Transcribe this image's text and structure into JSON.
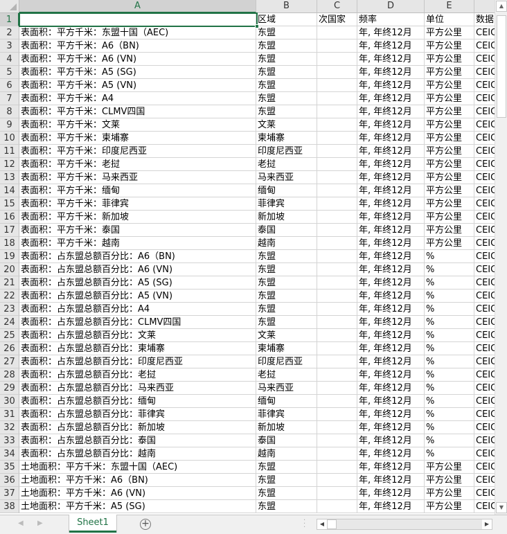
{
  "columns": [
    "A",
    "B",
    "C",
    "D",
    "E",
    ""
  ],
  "rows": [
    [
      "",
      "区域",
      "次国家",
      "频率",
      "单位",
      "数据"
    ],
    [
      "表面积：平方千米：东盟十国（AEC)",
      "东盟",
      "",
      "年, 年终12月",
      "平方公里",
      "CEIC"
    ],
    [
      "表面积：平方千米：A6（BN)",
      "东盟",
      "",
      "年, 年终12月",
      "平方公里",
      "CEIC"
    ],
    [
      "表面积：平方千米：A6 (VN)",
      "东盟",
      "",
      "年, 年终12月",
      "平方公里",
      "CEIC"
    ],
    [
      "表面积：平方千米：A5 (SG)",
      "东盟",
      "",
      "年, 年终12月",
      "平方公里",
      "CEIC"
    ],
    [
      "表面积：平方千米：A5 (VN)",
      "东盟",
      "",
      "年, 年终12月",
      "平方公里",
      "CEIC"
    ],
    [
      "表面积：平方千米：A4",
      "东盟",
      "",
      "年, 年终12月",
      "平方公里",
      "CEIC"
    ],
    [
      "表面积：平方千米：CLMV四国",
      "东盟",
      "",
      "年, 年终12月",
      "平方公里",
      "CEIC"
    ],
    [
      "表面积：平方千米：文莱",
      "文莱",
      "",
      "年, 年终12月",
      "平方公里",
      "CEIC"
    ],
    [
      "表面积：平方千米：柬埔寨",
      "柬埔寨",
      "",
      "年, 年终12月",
      "平方公里",
      "CEIC"
    ],
    [
      "表面积：平方千米：印度尼西亚",
      "印度尼西亚",
      "",
      "年, 年终12月",
      "平方公里",
      "CEIC"
    ],
    [
      "表面积：平方千米：老挝",
      "老挝",
      "",
      "年, 年终12月",
      "平方公里",
      "CEIC"
    ],
    [
      "表面积：平方千米：马来西亚",
      "马来西亚",
      "",
      "年, 年终12月",
      "平方公里",
      "CEIC"
    ],
    [
      "表面积：平方千米：缅甸",
      "缅甸",
      "",
      "年, 年终12月",
      "平方公里",
      "CEIC"
    ],
    [
      "表面积：平方千米：菲律宾",
      "菲律宾",
      "",
      "年, 年终12月",
      "平方公里",
      "CEIC"
    ],
    [
      "表面积：平方千米：新加坡",
      "新加坡",
      "",
      "年, 年终12月",
      "平方公里",
      "CEIC"
    ],
    [
      "表面积：平方千米：泰国",
      "泰国",
      "",
      "年, 年终12月",
      "平方公里",
      "CEIC"
    ],
    [
      "表面积：平方千米：越南",
      "越南",
      "",
      "年, 年终12月",
      "平方公里",
      "CEIC"
    ],
    [
      "表面积：占东盟总额百分比：A6（BN)",
      "东盟",
      "",
      "年, 年终12月",
      "%",
      "CEIC"
    ],
    [
      "表面积：占东盟总额百分比：A6 (VN)",
      "东盟",
      "",
      "年, 年终12月",
      "%",
      "CEIC"
    ],
    [
      "表面积：占东盟总额百分比：A5 (SG)",
      "东盟",
      "",
      "年, 年终12月",
      "%",
      "CEIC"
    ],
    [
      "表面积：占东盟总额百分比：A5 (VN)",
      "东盟",
      "",
      "年, 年终12月",
      "%",
      "CEIC"
    ],
    [
      "表面积：占东盟总额百分比：A4",
      "东盟",
      "",
      "年, 年终12月",
      "%",
      "CEIC"
    ],
    [
      "表面积：占东盟总额百分比：CLMV四国",
      "东盟",
      "",
      "年, 年终12月",
      "%",
      "CEIC"
    ],
    [
      "表面积：占东盟总额百分比：文莱",
      "文莱",
      "",
      "年, 年终12月",
      "%",
      "CEIC"
    ],
    [
      "表面积：占东盟总额百分比：柬埔寨",
      "柬埔寨",
      "",
      "年, 年终12月",
      "%",
      "CEIC"
    ],
    [
      "表面积：占东盟总额百分比：印度尼西亚",
      "印度尼西亚",
      "",
      "年, 年终12月",
      "%",
      "CEIC"
    ],
    [
      "表面积：占东盟总额百分比：老挝",
      "老挝",
      "",
      "年, 年终12月",
      "%",
      "CEIC"
    ],
    [
      "表面积：占东盟总额百分比：马来西亚",
      "马来西亚",
      "",
      "年, 年终12月",
      "%",
      "CEIC"
    ],
    [
      "表面积：占东盟总额百分比：缅甸",
      "缅甸",
      "",
      "年, 年终12月",
      "%",
      "CEIC"
    ],
    [
      "表面积：占东盟总额百分比：菲律宾",
      "菲律宾",
      "",
      "年, 年终12月",
      "%",
      "CEIC"
    ],
    [
      "表面积：占东盟总额百分比：新加坡",
      "新加坡",
      "",
      "年, 年终12月",
      "%",
      "CEIC"
    ],
    [
      "表面积：占东盟总额百分比：泰国",
      "泰国",
      "",
      "年, 年终12月",
      "%",
      "CEIC"
    ],
    [
      "表面积：占东盟总额百分比：越南",
      "越南",
      "",
      "年, 年终12月",
      "%",
      "CEIC"
    ],
    [
      "土地面积：平方千米：东盟十国（AEC)",
      "东盟",
      "",
      "年, 年终12月",
      "平方公里",
      "CEIC"
    ],
    [
      "土地面积：平方千米：A6（BN)",
      "东盟",
      "",
      "年, 年终12月",
      "平方公里",
      "CEIC"
    ],
    [
      "土地面积：平方千米：A6 (VN)",
      "东盟",
      "",
      "年, 年终12月",
      "平方公里",
      "CEIC"
    ],
    [
      "土地面积：平方千米：A5 (SG)",
      "东盟",
      "",
      "年, 年终12月",
      "平方公里",
      "CEIC"
    ]
  ],
  "sheet_tab": "Sheet1",
  "add_sheet_icon": "plus-circle-icon",
  "accent_color": "#217346"
}
